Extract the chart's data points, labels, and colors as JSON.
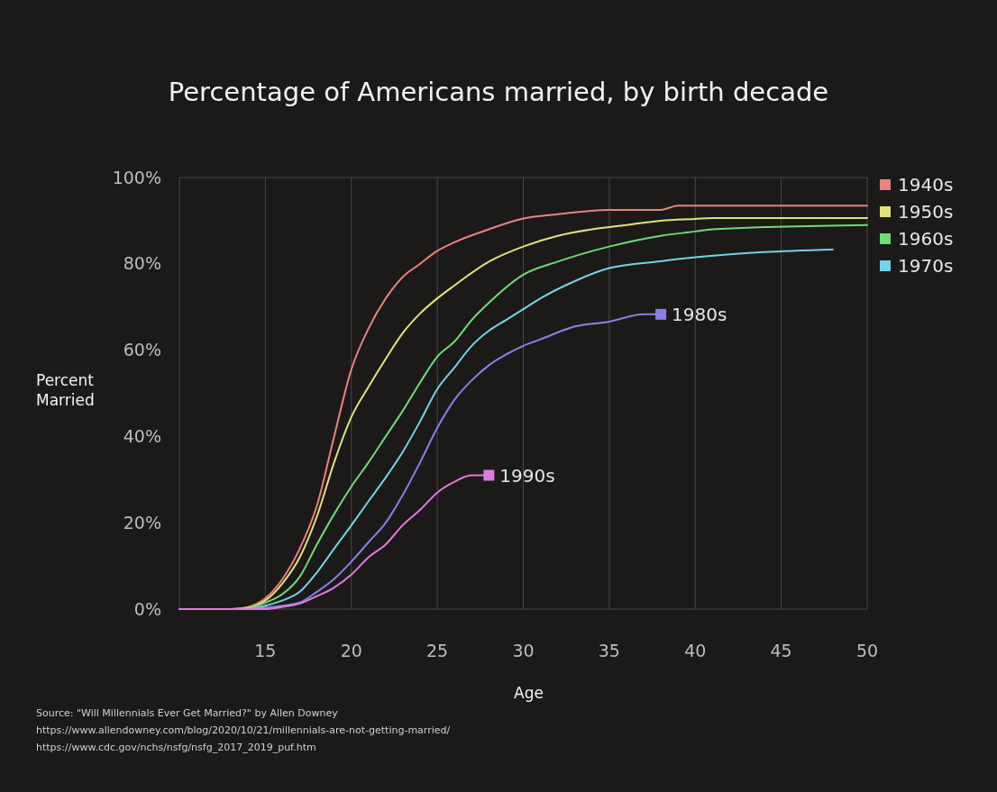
{
  "chart_data": {
    "type": "line",
    "title": "Percentage of Americans married, by birth decade",
    "xlabel": "Age",
    "ylabel": "Percent Married",
    "xlim": [
      10,
      50
    ],
    "xticks": [
      15,
      20,
      25,
      30,
      35,
      40,
      45,
      50
    ],
    "ylim": [
      0,
      100
    ],
    "yticks": [
      {
        "value": 0,
        "label": "0%"
      },
      {
        "value": 20,
        "label": "20%"
      },
      {
        "value": 40,
        "label": "40%"
      },
      {
        "value": 60,
        "label": "60%"
      },
      {
        "value": 80,
        "label": "80%"
      },
      {
        "value": 100,
        "label": "100%"
      }
    ],
    "grid": "x",
    "legend": "right",
    "series": [
      {
        "name": "1940s",
        "color": "#e8837f",
        "x": [
          10,
          13,
          14,
          15,
          16,
          17,
          18,
          19,
          20,
          21,
          22,
          23,
          24,
          25,
          26,
          28,
          30,
          32,
          35,
          38,
          39,
          40,
          50
        ],
        "values": [
          0,
          0,
          0.5,
          2.5,
          7,
          14,
          24,
          40,
          55.5,
          65,
          72,
          77,
          80,
          83,
          85,
          88,
          90.5,
          91.5,
          92.5,
          92.5,
          93.5,
          93.5,
          93.5
        ]
      },
      {
        "name": "1950s",
        "color": "#e4e27a",
        "x": [
          10,
          13,
          14,
          15,
          16,
          17,
          18,
          19,
          20,
          21,
          22,
          23,
          24,
          25,
          26,
          28,
          30,
          32,
          34,
          36,
          38,
          40,
          41,
          50
        ],
        "values": [
          0,
          0,
          0.3,
          2,
          6,
          12,
          21.5,
          34,
          44.5,
          51.5,
          58,
          64,
          68.5,
          72,
          75,
          80.5,
          84,
          86.5,
          88,
          89,
          90,
          90.4,
          90.6,
          90.6
        ]
      },
      {
        "name": "1960s",
        "color": "#6fdc75",
        "x": [
          10,
          13,
          14,
          15,
          16,
          17,
          18,
          19,
          20,
          21,
          22,
          23,
          24,
          25,
          26,
          27,
          28,
          30,
          32,
          35,
          38,
          40,
          41,
          50
        ],
        "values": [
          0,
          0,
          0.2,
          1.5,
          3.5,
          7.5,
          15,
          22,
          28.4,
          34,
          40,
          46,
          52.5,
          58.5,
          62,
          67,
          71,
          77.5,
          80.5,
          84,
          86.5,
          87.5,
          88,
          89
        ]
      },
      {
        "name": "1970s",
        "color": "#72d4e8",
        "x": [
          10,
          13,
          14,
          15,
          16,
          17,
          18,
          19,
          20,
          21,
          22,
          23,
          24,
          25,
          26,
          27,
          28,
          29,
          30,
          31,
          33,
          35,
          38,
          40,
          44,
          48
        ],
        "values": [
          0,
          0,
          0,
          0.8,
          2,
          4,
          8.5,
          14,
          19.4,
          25,
          30.5,
          36.5,
          43.5,
          51,
          56,
          61,
          64.5,
          67,
          69.5,
          72,
          76,
          79,
          80.6,
          81.5,
          82.7,
          83.3
        ]
      },
      {
        "color": "#8a80e8",
        "x": [
          10,
          14,
          15,
          16,
          17,
          18,
          19,
          20,
          21,
          22,
          23,
          24,
          25,
          26,
          27,
          28,
          29,
          30,
          31,
          33,
          35,
          37,
          38
        ],
        "values": [
          0,
          0,
          0.3,
          0.8,
          1.5,
          4,
          7,
          11,
          15.5,
          20,
          26.5,
          34,
          42,
          48.5,
          53,
          56.5,
          59,
          61,
          62.5,
          65.5,
          66.6,
          68.3,
          68.3
        ]
      },
      {
        "color": "#e07ae0",
        "x": [
          10,
          15,
          16,
          17,
          18,
          19,
          20,
          21,
          22,
          23,
          24,
          25,
          26,
          27,
          28
        ],
        "values": [
          0,
          0,
          0.5,
          1.3,
          3,
          5,
          8,
          12,
          15,
          19.5,
          23,
          27,
          29.5,
          31,
          31
        ]
      }
    ],
    "annotations": [
      {
        "text": "1980s",
        "x": 38,
        "y": 68.3
      },
      {
        "text": "1990s",
        "x": 28,
        "y": 31
      },
      "Source: \"Will Millennials Ever Get Married?\" by Allen Downey",
      "https://www.allendowney.com/blog/2020/10/21/millennials-are-not-getting-married/",
      "https://www.cdc.gov/nchs/nsfg/nsfg_2017_2019_puf.htm"
    ]
  }
}
